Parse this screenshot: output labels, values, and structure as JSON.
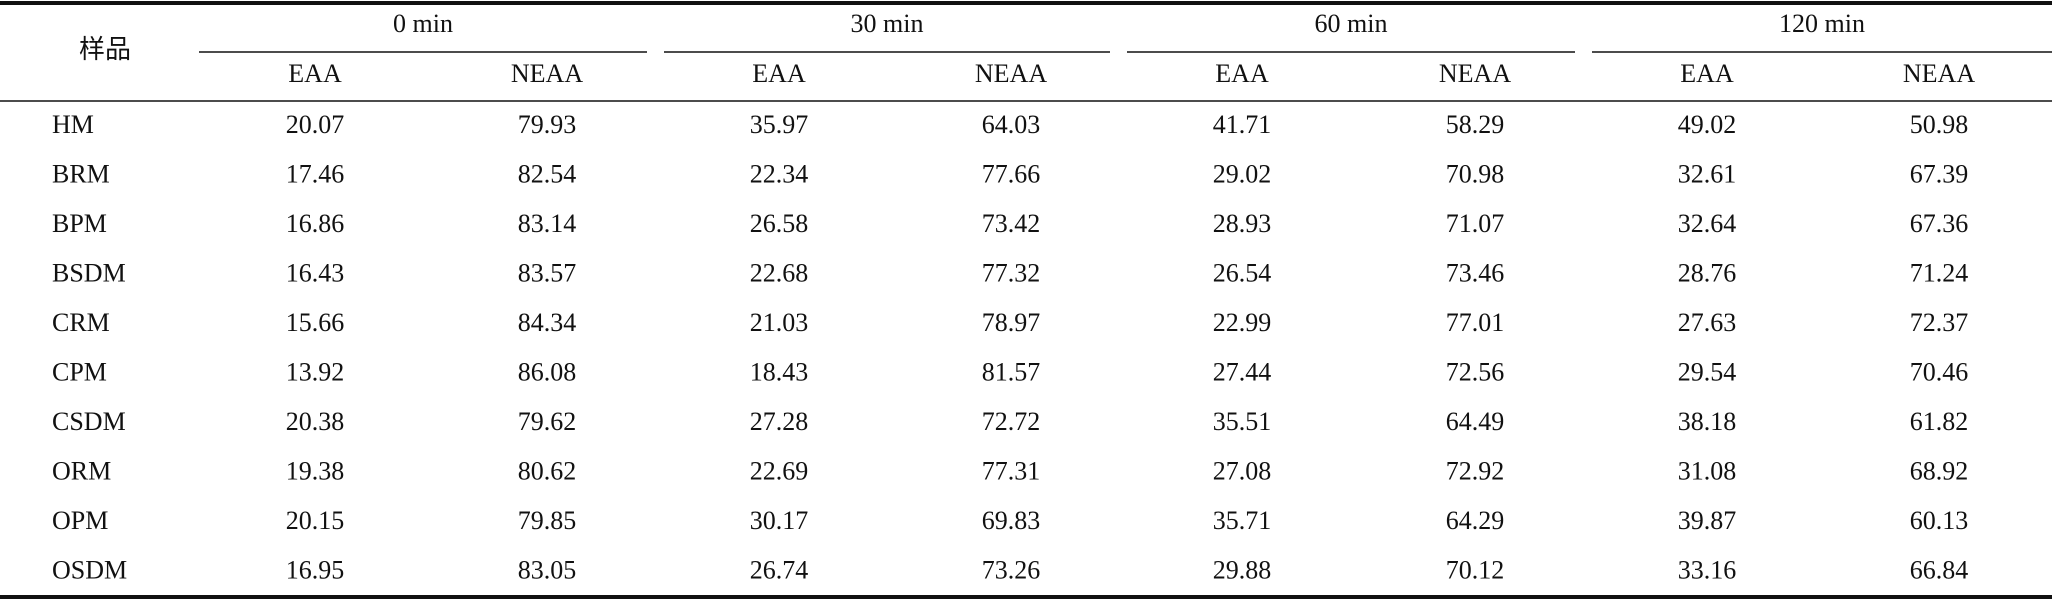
{
  "table": {
    "sample_label": "样品",
    "groups": [
      {
        "label": "0 min",
        "columns": [
          "EAA",
          "NEAA"
        ]
      },
      {
        "label": "30 min",
        "columns": [
          "EAA",
          "NEAA"
        ]
      },
      {
        "label": "60 min",
        "columns": [
          "EAA",
          "NEAA"
        ]
      },
      {
        "label": "120 min",
        "columns": [
          "EAA",
          "NEAA"
        ]
      }
    ],
    "rows": [
      {
        "sample": "HM",
        "values": [
          "20.07",
          "79.93",
          "35.97",
          "64.03",
          "41.71",
          "58.29",
          "49.02",
          "50.98"
        ]
      },
      {
        "sample": "BRM",
        "values": [
          "17.46",
          "82.54",
          "22.34",
          "77.66",
          "29.02",
          "70.98",
          "32.61",
          "67.39"
        ]
      },
      {
        "sample": "BPM",
        "values": [
          "16.86",
          "83.14",
          "26.58",
          "73.42",
          "28.93",
          "71.07",
          "32.64",
          "67.36"
        ]
      },
      {
        "sample": "BSDM",
        "values": [
          "16.43",
          "83.57",
          "22.68",
          "77.32",
          "26.54",
          "73.46",
          "28.76",
          "71.24"
        ]
      },
      {
        "sample": "CRM",
        "values": [
          "15.66",
          "84.34",
          "21.03",
          "78.97",
          "22.99",
          "77.01",
          "27.63",
          "72.37"
        ]
      },
      {
        "sample": "CPM",
        "values": [
          "13.92",
          "86.08",
          "18.43",
          "81.57",
          "27.44",
          "72.56",
          "29.54",
          "70.46"
        ]
      },
      {
        "sample": "CSDM",
        "values": [
          "20.38",
          "79.62",
          "27.28",
          "72.72",
          "35.51",
          "64.49",
          "38.18",
          "61.82"
        ]
      },
      {
        "sample": "ORM",
        "values": [
          "19.38",
          "80.62",
          "22.69",
          "77.31",
          "27.08",
          "72.92",
          "31.08",
          "68.92"
        ]
      },
      {
        "sample": "OPM",
        "values": [
          "20.15",
          "79.85",
          "30.17",
          "69.83",
          "35.71",
          "64.29",
          "39.87",
          "60.13"
        ]
      },
      {
        "sample": "OSDM",
        "values": [
          "16.95",
          "83.05",
          "26.74",
          "73.26",
          "29.88",
          "70.12",
          "33.16",
          "66.84"
        ]
      }
    ]
  }
}
